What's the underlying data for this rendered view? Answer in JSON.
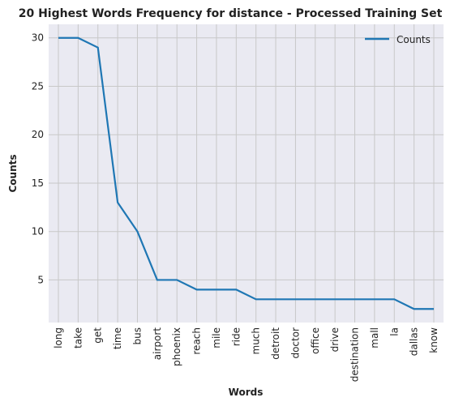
{
  "chart_data": {
    "type": "line",
    "title": "20 Highest Words Frequency for distance - Processed Training Set",
    "xlabel": "Words",
    "ylabel": "Counts",
    "categories": [
      "long",
      "take",
      "get",
      "time",
      "bus",
      "airport",
      "phoenix",
      "reach",
      "mile",
      "ride",
      "much",
      "detroit",
      "doctor",
      "office",
      "drive",
      "destination",
      "mall",
      "la",
      "dallas",
      "know"
    ],
    "series": [
      {
        "name": "Counts",
        "values": [
          30,
          30,
          29,
          13,
          10,
          5,
          5,
          4,
          4,
          4,
          3,
          3,
          3,
          3,
          3,
          3,
          3,
          3,
          2,
          2
        ],
        "color": "#1f77b4"
      }
    ],
    "ylim": [
      0.6,
      31.4
    ],
    "yticks": [
      5,
      10,
      15,
      20,
      25,
      30
    ],
    "grid": true,
    "legend_position": "top-right",
    "background": "#eaeaf2",
    "grid_color": "#c8c8c8"
  }
}
